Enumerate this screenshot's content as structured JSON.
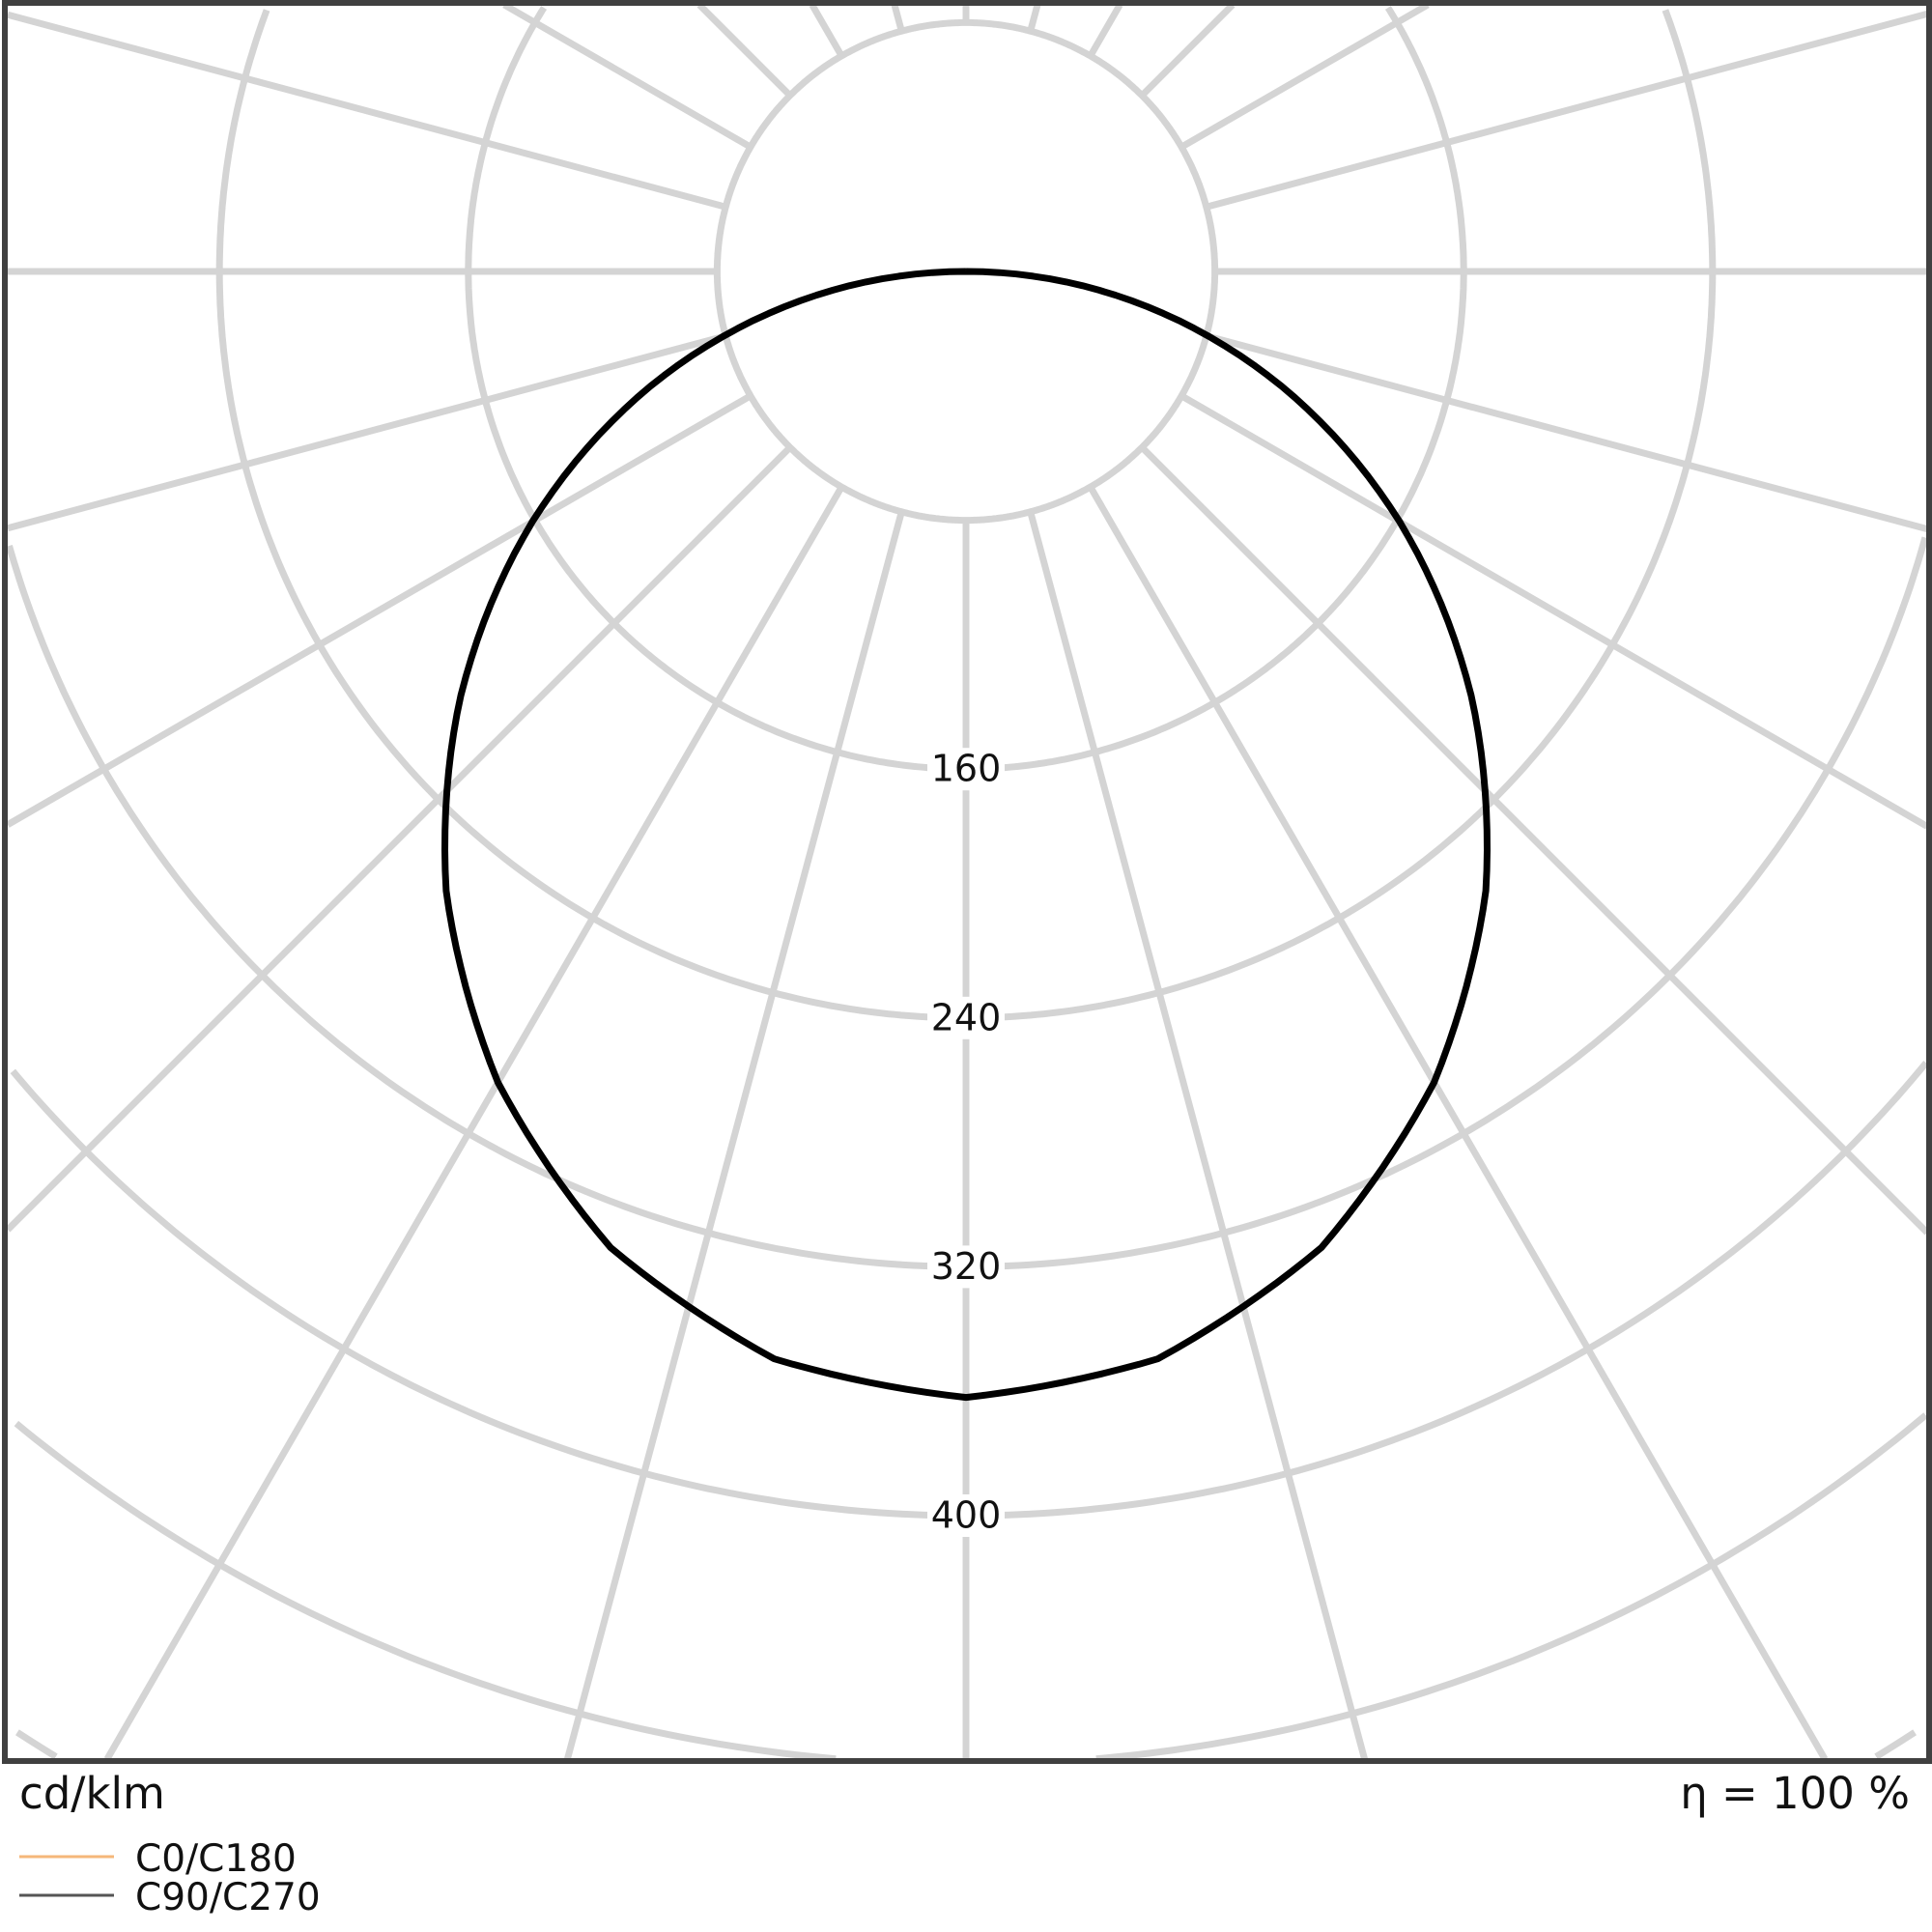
{
  "chart_data": {
    "type": "polar",
    "unit_label": "cd/klm",
    "efficiency_label": "η = 100 %",
    "radial_ticks": [
      160,
      240,
      320,
      400
    ],
    "ring_step": 80,
    "angle_step_deg": 15,
    "grid": true,
    "legend_placement": "bottom-left",
    "angles_deg": [
      0,
      10,
      20,
      30,
      40,
      50,
      60,
      70,
      80,
      90,
      180
    ],
    "series": [
      {
        "name": "C0/C180",
        "color": "#f5b77a",
        "values": [
          362,
          355,
          334,
          301,
          260,
          212,
          161,
          108,
          54,
          0,
          0
        ]
      },
      {
        "name": "C90/C270",
        "color": "#000000",
        "values": [
          362,
          355,
          334,
          301,
          260,
          212,
          161,
          108,
          54,
          0,
          0
        ]
      }
    ]
  }
}
